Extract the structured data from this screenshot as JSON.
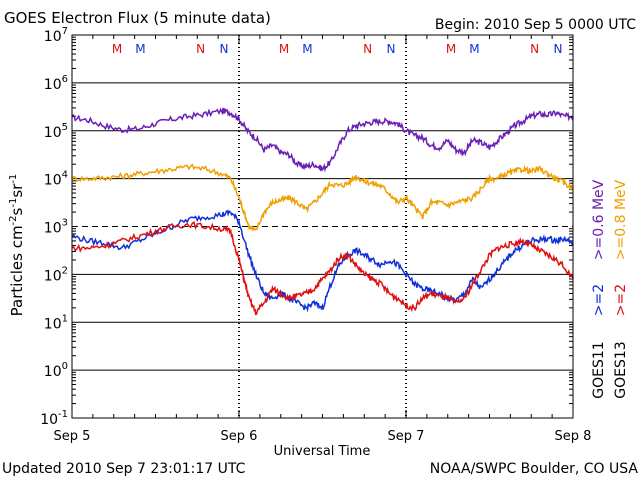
{
  "header": {
    "title": "GOES Electron Flux (5 minute data)",
    "begin": "Begin: 2010 Sep 5 0000 UTC"
  },
  "footer": {
    "updated": "Updated 2010 Sep  7 23:01:17 UTC",
    "source": "NOAA/SWPC Boulder, CO USA"
  },
  "legend": {
    "row1": [
      {
        "text": ">=0.6 MeV",
        "color": "#6a1fb5"
      },
      {
        "text": ">=0.8 MeV",
        "color": "#f0a000"
      }
    ],
    "row2": [
      {
        "text": ">=2",
        "color": "#1030d8"
      },
      {
        "text": ">=2",
        "color": "#e01010"
      }
    ],
    "row3": [
      {
        "text": "GOES11",
        "color": "#000000"
      },
      {
        "text": "GOES13",
        "color": "#000000"
      }
    ]
  },
  "colors": {
    "purple": "#6a1fb5",
    "orange": "#f0a000",
    "blue": "#1030d8",
    "red": "#e01010",
    "grid": "#000000"
  },
  "chart_data": {
    "type": "line",
    "title": "GOES Electron Flux (5 minute data)",
    "xlabel": "Universal Time",
    "ylabel": "Particles cm⁻²s⁻¹sr⁻¹",
    "ylabel_parts": [
      "Particles cm",
      "-2",
      "s",
      "-1",
      "sr",
      "-1"
    ],
    "yscale": "log",
    "ylim_exp": [
      -1,
      7
    ],
    "y_ticks": [
      {
        "exp": 7,
        "base": "10",
        "sup": "7"
      },
      {
        "exp": 6,
        "base": "10",
        "sup": "6"
      },
      {
        "exp": 5,
        "base": "10",
        "sup": "5"
      },
      {
        "exp": 4,
        "base": "10",
        "sup": "4"
      },
      {
        "exp": 3,
        "base": "10",
        "sup": "3"
      },
      {
        "exp": 2,
        "base": "10",
        "sup": "2"
      },
      {
        "exp": 1,
        "base": "10",
        "sup": "1"
      },
      {
        "exp": 0,
        "base": "10",
        "sup": "0"
      },
      {
        "exp": -1,
        "base": "10",
        "sup": "-1"
      }
    ],
    "dashed_threshold_exp": 3,
    "x_range_days": [
      0,
      3
    ],
    "x_ticks": [
      {
        "day": 0,
        "label": "Sep 5"
      },
      {
        "day": 1,
        "label": "Sep 6"
      },
      {
        "day": 2,
        "label": "Sep 7"
      },
      {
        "day": 3,
        "label": "Sep 8"
      }
    ],
    "top_markers": [
      {
        "day": 0.27,
        "label": "M",
        "color": "#e01010"
      },
      {
        "day": 0.41,
        "label": "M",
        "color": "#1030d8"
      },
      {
        "day": 0.77,
        "label": "N",
        "color": "#e01010"
      },
      {
        "day": 0.91,
        "label": "N",
        "color": "#1030d8"
      },
      {
        "day": 1.27,
        "label": "M",
        "color": "#e01010"
      },
      {
        "day": 1.41,
        "label": "M",
        "color": "#1030d8"
      },
      {
        "day": 1.77,
        "label": "N",
        "color": "#e01010"
      },
      {
        "day": 1.91,
        "label": "N",
        "color": "#1030d8"
      },
      {
        "day": 2.27,
        "label": "M",
        "color": "#e01010"
      },
      {
        "day": 2.41,
        "label": "M",
        "color": "#1030d8"
      },
      {
        "day": 2.77,
        "label": "N",
        "color": "#e01010"
      },
      {
        "day": 2.91,
        "label": "N",
        "color": "#1030d8"
      }
    ],
    "series": [
      {
        "name": ">=0.6 MeV",
        "color": "#6a1fb5",
        "points_day_log10": [
          [
            0,
            5.28
          ],
          [
            0.1,
            5.22
          ],
          [
            0.2,
            5.1
          ],
          [
            0.3,
            5.02
          ],
          [
            0.4,
            5.04
          ],
          [
            0.5,
            5.15
          ],
          [
            0.6,
            5.24
          ],
          [
            0.7,
            5.3
          ],
          [
            0.8,
            5.35
          ],
          [
            0.9,
            5.42
          ],
          [
            0.95,
            5.38
          ],
          [
            1.0,
            5.25
          ],
          [
            1.05,
            5.0
          ],
          [
            1.1,
            4.85
          ],
          [
            1.15,
            4.6
          ],
          [
            1.2,
            4.7
          ],
          [
            1.25,
            4.55
          ],
          [
            1.3,
            4.5
          ],
          [
            1.35,
            4.3
          ],
          [
            1.4,
            4.25
          ],
          [
            1.45,
            4.3
          ],
          [
            1.5,
            4.2
          ],
          [
            1.55,
            4.35
          ],
          [
            1.6,
            4.7
          ],
          [
            1.65,
            5.0
          ],
          [
            1.7,
            5.1
          ],
          [
            1.75,
            5.15
          ],
          [
            1.8,
            5.18
          ],
          [
            1.85,
            5.2
          ],
          [
            1.9,
            5.2
          ],
          [
            1.95,
            5.15
          ],
          [
            2.0,
            5.0
          ],
          [
            2.05,
            4.9
          ],
          [
            2.1,
            4.85
          ],
          [
            2.15,
            4.7
          ],
          [
            2.2,
            4.65
          ],
          [
            2.25,
            4.8
          ],
          [
            2.3,
            4.6
          ],
          [
            2.35,
            4.55
          ],
          [
            2.4,
            4.8
          ],
          [
            2.45,
            4.75
          ],
          [
            2.5,
            4.65
          ],
          [
            2.55,
            4.8
          ],
          [
            2.6,
            4.95
          ],
          [
            2.65,
            5.1
          ],
          [
            2.7,
            5.2
          ],
          [
            2.75,
            5.3
          ],
          [
            2.8,
            5.35
          ],
          [
            2.85,
            5.33
          ],
          [
            2.9,
            5.37
          ],
          [
            2.95,
            5.3
          ],
          [
            3.0,
            5.3
          ]
        ]
      },
      {
        "name": ">=0.8 MeV",
        "color": "#f0a000",
        "points_day_log10": [
          [
            0,
            4.0
          ],
          [
            0.1,
            4.0
          ],
          [
            0.2,
            4.02
          ],
          [
            0.3,
            4.05
          ],
          [
            0.4,
            4.1
          ],
          [
            0.5,
            4.15
          ],
          [
            0.6,
            4.2
          ],
          [
            0.7,
            4.25
          ],
          [
            0.8,
            4.2
          ],
          [
            0.9,
            4.1
          ],
          [
            0.95,
            4.0
          ],
          [
            1.0,
            3.6
          ],
          [
            1.03,
            3.3
          ],
          [
            1.06,
            3.0
          ],
          [
            1.1,
            2.9
          ],
          [
            1.15,
            3.3
          ],
          [
            1.2,
            3.5
          ],
          [
            1.25,
            3.55
          ],
          [
            1.3,
            3.6
          ],
          [
            1.35,
            3.5
          ],
          [
            1.4,
            3.35
          ],
          [
            1.45,
            3.5
          ],
          [
            1.5,
            3.7
          ],
          [
            1.55,
            3.9
          ],
          [
            1.6,
            3.85
          ],
          [
            1.65,
            3.9
          ],
          [
            1.7,
            4.05
          ],
          [
            1.75,
            3.95
          ],
          [
            1.8,
            3.9
          ],
          [
            1.85,
            3.85
          ],
          [
            1.9,
            3.7
          ],
          [
            1.95,
            3.5
          ],
          [
            2.0,
            3.6
          ],
          [
            2.05,
            3.4
          ],
          [
            2.1,
            3.2
          ],
          [
            2.15,
            3.5
          ],
          [
            2.2,
            3.5
          ],
          [
            2.25,
            3.45
          ],
          [
            2.3,
            3.5
          ],
          [
            2.35,
            3.55
          ],
          [
            2.4,
            3.6
          ],
          [
            2.45,
            3.8
          ],
          [
            2.5,
            4.0
          ],
          [
            2.55,
            4.0
          ],
          [
            2.6,
            4.1
          ],
          [
            2.65,
            4.15
          ],
          [
            2.7,
            4.2
          ],
          [
            2.75,
            4.15
          ],
          [
            2.8,
            4.2
          ],
          [
            2.85,
            4.1
          ],
          [
            2.9,
            4.0
          ],
          [
            2.95,
            3.9
          ],
          [
            3.0,
            3.8
          ]
        ]
      },
      {
        "name": ">=2 (GOES11)",
        "color": "#1030d8",
        "points_day_log10": [
          [
            0,
            2.8
          ],
          [
            0.1,
            2.7
          ],
          [
            0.2,
            2.65
          ],
          [
            0.3,
            2.55
          ],
          [
            0.4,
            2.7
          ],
          [
            0.5,
            2.85
          ],
          [
            0.6,
            3.0
          ],
          [
            0.7,
            3.15
          ],
          [
            0.8,
            3.2
          ],
          [
            0.9,
            3.25
          ],
          [
            0.95,
            3.3
          ],
          [
            1.0,
            3.1
          ],
          [
            1.05,
            2.5
          ],
          [
            1.1,
            2.0
          ],
          [
            1.15,
            1.6
          ],
          [
            1.2,
            1.5
          ],
          [
            1.25,
            1.6
          ],
          [
            1.3,
            1.5
          ],
          [
            1.35,
            1.4
          ],
          [
            1.4,
            1.3
          ],
          [
            1.45,
            1.4
          ],
          [
            1.5,
            1.3
          ],
          [
            1.55,
            1.8
          ],
          [
            1.6,
            2.2
          ],
          [
            1.65,
            2.4
          ],
          [
            1.7,
            2.5
          ],
          [
            1.75,
            2.4
          ],
          [
            1.8,
            2.3
          ],
          [
            1.85,
            2.2
          ],
          [
            1.9,
            2.3
          ],
          [
            1.95,
            2.2
          ],
          [
            2.0,
            2.0
          ],
          [
            2.05,
            1.8
          ],
          [
            2.1,
            1.7
          ],
          [
            2.15,
            1.65
          ],
          [
            2.2,
            1.6
          ],
          [
            2.25,
            1.5
          ],
          [
            2.3,
            1.45
          ],
          [
            2.35,
            1.6
          ],
          [
            2.4,
            1.9
          ],
          [
            2.45,
            1.7
          ],
          [
            2.5,
            1.9
          ],
          [
            2.55,
            2.1
          ],
          [
            2.6,
            2.3
          ],
          [
            2.65,
            2.5
          ],
          [
            2.7,
            2.6
          ],
          [
            2.75,
            2.7
          ],
          [
            2.8,
            2.72
          ],
          [
            2.85,
            2.75
          ],
          [
            2.9,
            2.7
          ],
          [
            2.95,
            2.75
          ],
          [
            3.0,
            2.65
          ]
        ]
      },
      {
        "name": ">=2 (GOES13)",
        "color": "#e01010",
        "points_day_log10": [
          [
            0,
            2.55
          ],
          [
            0.1,
            2.55
          ],
          [
            0.2,
            2.6
          ],
          [
            0.3,
            2.7
          ],
          [
            0.4,
            2.8
          ],
          [
            0.5,
            2.9
          ],
          [
            0.6,
            3.0
          ],
          [
            0.7,
            3.05
          ],
          [
            0.8,
            3.0
          ],
          [
            0.9,
            2.95
          ],
          [
            0.95,
            2.9
          ],
          [
            1.0,
            2.3
          ],
          [
            1.03,
            1.9
          ],
          [
            1.06,
            1.5
          ],
          [
            1.1,
            1.2
          ],
          [
            1.15,
            1.4
          ],
          [
            1.2,
            1.7
          ],
          [
            1.25,
            1.6
          ],
          [
            1.3,
            1.5
          ],
          [
            1.35,
            1.55
          ],
          [
            1.4,
            1.6
          ],
          [
            1.45,
            1.7
          ],
          [
            1.5,
            1.9
          ],
          [
            1.55,
            2.1
          ],
          [
            1.6,
            2.35
          ],
          [
            1.65,
            2.4
          ],
          [
            1.7,
            2.2
          ],
          [
            1.75,
            2.0
          ],
          [
            1.8,
            1.9
          ],
          [
            1.85,
            1.8
          ],
          [
            1.9,
            1.6
          ],
          [
            1.95,
            1.5
          ],
          [
            2.0,
            1.35
          ],
          [
            2.05,
            1.3
          ],
          [
            2.1,
            1.5
          ],
          [
            2.15,
            1.6
          ],
          [
            2.2,
            1.55
          ],
          [
            2.25,
            1.5
          ],
          [
            2.3,
            1.4
          ],
          [
            2.35,
            1.5
          ],
          [
            2.4,
            1.8
          ],
          [
            2.45,
            2.1
          ],
          [
            2.5,
            2.4
          ],
          [
            2.55,
            2.55
          ],
          [
            2.6,
            2.6
          ],
          [
            2.65,
            2.65
          ],
          [
            2.7,
            2.7
          ],
          [
            2.75,
            2.6
          ],
          [
            2.8,
            2.5
          ],
          [
            2.85,
            2.4
          ],
          [
            2.9,
            2.3
          ],
          [
            2.95,
            2.15
          ],
          [
            3.0,
            1.9
          ]
        ]
      }
    ]
  }
}
